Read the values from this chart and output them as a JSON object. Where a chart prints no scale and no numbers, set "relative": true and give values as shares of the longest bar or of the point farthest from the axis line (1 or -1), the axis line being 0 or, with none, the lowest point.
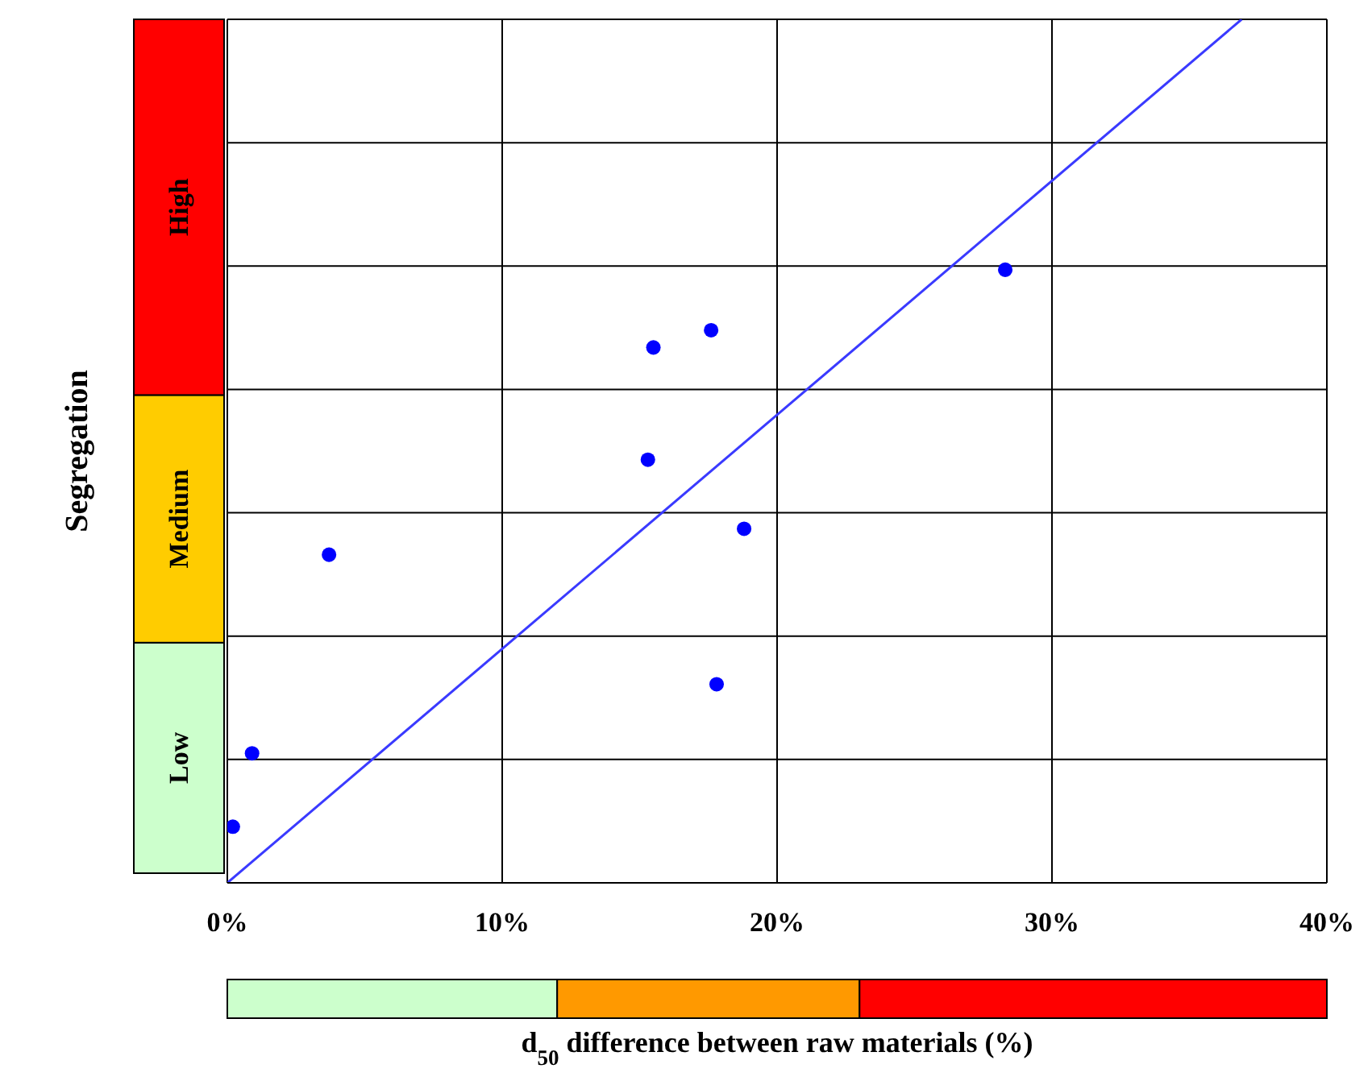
{
  "chart_data": {
    "type": "scatter",
    "xlabel": "d$_{50}$ difference between raw materials (%)",
    "ylabel": "Segregation",
    "relative": true,
    "grid": true,
    "legend": false,
    "marker": "circle",
    "xlim": [
      0,
      40
    ],
    "xticks": [
      {
        "value": 0,
        "label": "0%"
      },
      {
        "value": 10,
        "label": "10%"
      },
      {
        "value": 20,
        "label": "20%"
      },
      {
        "value": 30,
        "label": "30%"
      },
      {
        "value": 40,
        "label": "40%"
      }
    ],
    "series": [
      {
        "type": "scatter",
        "color": "#0000ff",
        "x": [
          0.2,
          0.9,
          3.7,
          15.3,
          15.5,
          17.6,
          17.8,
          18.8,
          28.3
        ],
        "values": [
          0.065,
          0.15,
          0.38,
          0.49,
          0.62,
          0.64,
          0.23,
          0.41,
          0.71
        ]
      },
      {
        "type": "line",
        "color": "#3a3aff",
        "marker": "none",
        "x": [
          0,
          36.9
        ],
        "values": [
          0,
          1
        ]
      }
    ],
    "annotations": [
      "Low",
      "Medium",
      "High"
    ]
  }
}
